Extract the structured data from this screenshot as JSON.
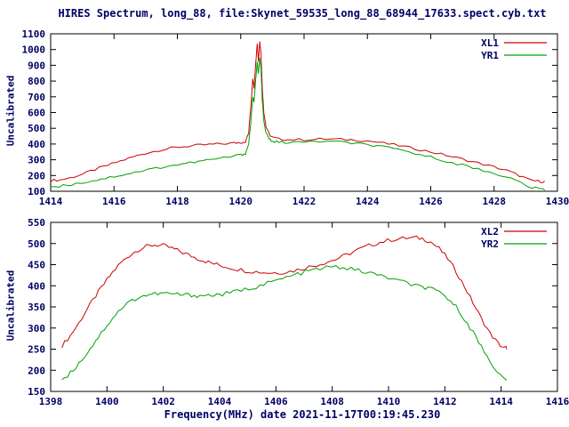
{
  "style": {
    "text_color": "#000066",
    "axis_color": "#000000",
    "red": "#cc0000",
    "green": "#00a000"
  },
  "chart_data": [
    {
      "type": "line",
      "title": "HIRES Spectrum, long_88, file:Skynet_59535_long_88_68944_17633.spect.cyb.txt",
      "xlabel": "",
      "ylabel": "Uncalibrated",
      "xlim": [
        1414,
        1430
      ],
      "ylim": [
        100,
        1100
      ],
      "xtick_step": 2,
      "ytick_step": 100,
      "grid": false,
      "legend_position": "top-right",
      "series": [
        {
          "name": "XL1",
          "color": "#cc0000",
          "noise": 8,
          "points": [
            [
              1414.0,
              168
            ],
            [
              1414.3,
              172
            ],
            [
              1414.6,
              185
            ],
            [
              1415.0,
              208
            ],
            [
              1415.4,
              238
            ],
            [
              1415.8,
              265
            ],
            [
              1416.2,
              292
            ],
            [
              1416.6,
              318
            ],
            [
              1417.0,
              342
            ],
            [
              1417.4,
              360
            ],
            [
              1417.8,
              374
            ],
            [
              1418.2,
              384
            ],
            [
              1418.6,
              391
            ],
            [
              1419.0,
              396
            ],
            [
              1419.4,
              401
            ],
            [
              1419.8,
              406
            ],
            [
              1420.0,
              410
            ],
            [
              1420.15,
              416
            ],
            [
              1420.25,
              470
            ],
            [
              1420.32,
              640
            ],
            [
              1420.38,
              820
            ],
            [
              1420.42,
              760
            ],
            [
              1420.47,
              905
            ],
            [
              1420.52,
              1040
            ],
            [
              1420.56,
              930
            ],
            [
              1420.6,
              1050
            ],
            [
              1420.64,
              980
            ],
            [
              1420.68,
              760
            ],
            [
              1420.73,
              600
            ],
            [
              1420.8,
              510
            ],
            [
              1420.9,
              462
            ],
            [
              1421.0,
              442
            ],
            [
              1421.2,
              432
            ],
            [
              1421.5,
              428
            ],
            [
              1422.0,
              427
            ],
            [
              1422.5,
              431
            ],
            [
              1423.0,
              430
            ],
            [
              1423.5,
              427
            ],
            [
              1424.0,
              421
            ],
            [
              1424.5,
              406
            ],
            [
              1425.0,
              390
            ],
            [
              1425.5,
              371
            ],
            [
              1426.0,
              350
            ],
            [
              1426.5,
              328
            ],
            [
              1427.0,
              304
            ],
            [
              1427.5,
              279
            ],
            [
              1428.0,
              254
            ],
            [
              1428.4,
              232
            ],
            [
              1428.8,
              200
            ],
            [
              1429.1,
              172
            ],
            [
              1429.4,
              163
            ],
            [
              1429.6,
              162
            ]
          ]
        },
        {
          "name": "YR1",
          "color": "#00a000",
          "noise": 8,
          "points": [
            [
              1414.0,
              128
            ],
            [
              1414.4,
              136
            ],
            [
              1414.8,
              148
            ],
            [
              1415.2,
              162
            ],
            [
              1415.6,
              178
            ],
            [
              1416.0,
              194
            ],
            [
              1416.4,
              210
            ],
            [
              1416.8,
              226
            ],
            [
              1417.2,
              242
            ],
            [
              1417.6,
              256
            ],
            [
              1418.0,
              269
            ],
            [
              1418.4,
              281
            ],
            [
              1418.8,
              293
            ],
            [
              1419.2,
              305
            ],
            [
              1419.6,
              317
            ],
            [
              1420.0,
              330
            ],
            [
              1420.15,
              340
            ],
            [
              1420.25,
              400
            ],
            [
              1420.32,
              540
            ],
            [
              1420.38,
              700
            ],
            [
              1420.42,
              660
            ],
            [
              1420.47,
              800
            ],
            [
              1420.52,
              930
            ],
            [
              1420.56,
              840
            ],
            [
              1420.6,
              945
            ],
            [
              1420.64,
              880
            ],
            [
              1420.68,
              680
            ],
            [
              1420.73,
              540
            ],
            [
              1420.8,
              470
            ],
            [
              1420.9,
              432
            ],
            [
              1421.0,
              418
            ],
            [
              1421.2,
              411
            ],
            [
              1421.5,
              409
            ],
            [
              1422.0,
              412
            ],
            [
              1422.5,
              417
            ],
            [
              1423.0,
              414
            ],
            [
              1423.5,
              406
            ],
            [
              1424.0,
              396
            ],
            [
              1424.5,
              381
            ],
            [
              1425.0,
              362
            ],
            [
              1425.5,
              341
            ],
            [
              1426.0,
              317
            ],
            [
              1426.5,
              292
            ],
            [
              1427.0,
              266
            ],
            [
              1427.5,
              240
            ],
            [
              1428.0,
              214
            ],
            [
              1428.4,
              192
            ],
            [
              1428.8,
              158
            ],
            [
              1429.1,
              128
            ],
            [
              1429.4,
              116
            ],
            [
              1429.6,
              114
            ]
          ]
        }
      ]
    },
    {
      "type": "line",
      "title": "",
      "xlabel": "Frequency(MHz) date 2021-11-17T00:19:45.230",
      "ylabel": "Uncalibrated",
      "xlim": [
        1398,
        1416
      ],
      "ylim": [
        150,
        550
      ],
      "xtick_step": 2,
      "ytick_step": 50,
      "grid": false,
      "legend_position": "top-right",
      "series": [
        {
          "name": "XL2",
          "color": "#cc0000",
          "noise": 5,
          "points": [
            [
              1398.4,
              258
            ],
            [
              1398.7,
              282
            ],
            [
              1399.0,
              312
            ],
            [
              1399.3,
              345
            ],
            [
              1399.6,
              376
            ],
            [
              1399.9,
              405
            ],
            [
              1400.2,
              432
            ],
            [
              1400.5,
              455
            ],
            [
              1400.8,
              472
            ],
            [
              1401.1,
              485
            ],
            [
              1401.4,
              493
            ],
            [
              1401.7,
              497
            ],
            [
              1402.0,
              495
            ],
            [
              1402.3,
              489
            ],
            [
              1402.6,
              481
            ],
            [
              1402.9,
              473
            ],
            [
              1403.2,
              465
            ],
            [
              1403.5,
              458
            ],
            [
              1403.8,
              452
            ],
            [
              1404.1,
              447
            ],
            [
              1404.5,
              441
            ],
            [
              1404.9,
              436
            ],
            [
              1405.3,
              433
            ],
            [
              1405.7,
              431
            ],
            [
              1406.1,
              431
            ],
            [
              1406.5,
              434
            ],
            [
              1406.9,
              440
            ],
            [
              1407.3,
              447
            ],
            [
              1407.7,
              454
            ],
            [
              1408.1,
              462
            ],
            [
              1408.5,
              473
            ],
            [
              1408.9,
              485
            ],
            [
              1409.3,
              495
            ],
            [
              1409.7,
              503
            ],
            [
              1410.1,
              509
            ],
            [
              1410.5,
              512
            ],
            [
              1410.9,
              514
            ],
            [
              1411.2,
              512
            ],
            [
              1411.5,
              504
            ],
            [
              1411.8,
              488
            ],
            [
              1412.1,
              465
            ],
            [
              1412.4,
              434
            ],
            [
              1412.7,
              398
            ],
            [
              1413.0,
              360
            ],
            [
              1413.3,
              322
            ],
            [
              1413.6,
              288
            ],
            [
              1413.9,
              263
            ],
            [
              1414.1,
              252
            ],
            [
              1414.2,
              254
            ]
          ]
        },
        {
          "name": "YR2",
          "color": "#00a000",
          "noise": 5,
          "points": [
            [
              1398.4,
              178
            ],
            [
              1398.7,
              194
            ],
            [
              1399.0,
              216
            ],
            [
              1399.3,
              242
            ],
            [
              1399.6,
              270
            ],
            [
              1399.9,
              298
            ],
            [
              1400.2,
              324
            ],
            [
              1400.5,
              346
            ],
            [
              1400.8,
              362
            ],
            [
              1401.1,
              372
            ],
            [
              1401.4,
              378
            ],
            [
              1401.7,
              381
            ],
            [
              1402.0,
              382
            ],
            [
              1402.3,
              381
            ],
            [
              1402.6,
              379
            ],
            [
              1402.9,
              378
            ],
            [
              1403.2,
              377
            ],
            [
              1403.5,
              377
            ],
            [
              1403.8,
              378
            ],
            [
              1404.1,
              380
            ],
            [
              1404.5,
              385
            ],
            [
              1404.9,
              391
            ],
            [
              1405.3,
              398
            ],
            [
              1405.7,
              406
            ],
            [
              1406.1,
              414
            ],
            [
              1406.5,
              422
            ],
            [
              1406.9,
              430
            ],
            [
              1407.3,
              437
            ],
            [
              1407.7,
              442
            ],
            [
              1408.0,
              445
            ],
            [
              1408.4,
              443
            ],
            [
              1408.8,
              438
            ],
            [
              1409.2,
              432
            ],
            [
              1409.6,
              426
            ],
            [
              1410.0,
              419
            ],
            [
              1410.4,
              411
            ],
            [
              1410.8,
              403
            ],
            [
              1411.2,
              397
            ],
            [
              1411.5,
              392
            ],
            [
              1411.8,
              384
            ],
            [
              1412.1,
              371
            ],
            [
              1412.4,
              350
            ],
            [
              1412.7,
              322
            ],
            [
              1413.0,
              290
            ],
            [
              1413.3,
              256
            ],
            [
              1413.6,
              222
            ],
            [
              1413.9,
              194
            ],
            [
              1414.1,
              179
            ],
            [
              1414.2,
              178
            ]
          ]
        }
      ]
    }
  ]
}
